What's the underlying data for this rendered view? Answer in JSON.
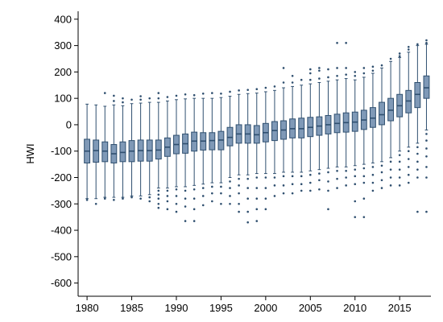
{
  "chart_data": {
    "type": "box",
    "title": "",
    "xlabel": "",
    "ylabel": "HWI",
    "ylim": [
      -650,
      430
    ],
    "xlim": [
      1979,
      2018.5
    ],
    "y_ticks": [
      400,
      300,
      200,
      100,
      0,
      -100,
      -200,
      -300,
      -400,
      -500,
      -600
    ],
    "x_ticks": [
      1980,
      1985,
      1990,
      1995,
      2000,
      2005,
      2010,
      2015
    ],
    "grid": false,
    "colors": {
      "box_fill": "#7f99b7",
      "box_stroke": "#2f4f6f",
      "outlier": "#2f4f6f",
      "axis": "#000000"
    },
    "boxes": [
      {
        "year": 1980,
        "lw": -280,
        "q1": -145,
        "med": -100,
        "q3": -55,
        "uw": 78,
        "outliers": [
          -285
        ]
      },
      {
        "year": 1981,
        "lw": -280,
        "q1": -142,
        "med": -98,
        "q3": -58,
        "uw": 75,
        "outliers": [
          -300
        ]
      },
      {
        "year": 1982,
        "lw": -275,
        "q1": -140,
        "med": -100,
        "q3": -65,
        "uw": 70,
        "outliers": [
          -280,
          120
        ]
      },
      {
        "year": 1983,
        "lw": -275,
        "q1": -145,
        "med": -110,
        "q3": -75,
        "uw": 75,
        "outliers": [
          -285,
          90,
          110
        ]
      },
      {
        "year": 1984,
        "lw": -275,
        "q1": -140,
        "med": -105,
        "q3": -65,
        "uw": 72,
        "outliers": [
          -280,
          85,
          100
        ]
      },
      {
        "year": 1985,
        "lw": -270,
        "q1": -140,
        "med": -100,
        "q3": -60,
        "uw": 80,
        "outliers": [
          -275,
          95
        ]
      },
      {
        "year": 1986,
        "lw": -270,
        "q1": -138,
        "med": -98,
        "q3": -58,
        "uw": 82,
        "outliers": [
          -280,
          95,
          108
        ]
      },
      {
        "year": 1987,
        "lw": -265,
        "q1": -138,
        "med": -98,
        "q3": -58,
        "uw": 85,
        "outliers": [
          -275,
          -290,
          100
        ]
      },
      {
        "year": 1988,
        "lw": -240,
        "q1": -130,
        "med": -96,
        "q3": -58,
        "uw": 85,
        "outliers": [
          -250,
          -265,
          -280,
          -300,
          -315,
          100,
          120
        ]
      },
      {
        "year": 1989,
        "lw": -240,
        "q1": -120,
        "med": -85,
        "q3": -50,
        "uw": 90,
        "outliers": [
          -250,
          -270,
          -290,
          -320,
          105
        ]
      },
      {
        "year": 1990,
        "lw": -235,
        "q1": -110,
        "med": -75,
        "q3": -40,
        "uw": 95,
        "outliers": [
          -245,
          -270,
          -300,
          -330,
          110
        ]
      },
      {
        "year": 1991,
        "lw": -235,
        "q1": -108,
        "med": -72,
        "q3": -35,
        "uw": 98,
        "outliers": [
          -250,
          -280,
          -310,
          -365,
          115
        ]
      },
      {
        "year": 1992,
        "lw": -230,
        "q1": -100,
        "med": -62,
        "q3": -28,
        "uw": 100,
        "outliers": [
          -245,
          -280,
          -320,
          -365,
          112
        ]
      },
      {
        "year": 1993,
        "lw": -225,
        "q1": -96,
        "med": -62,
        "q3": -30,
        "uw": 100,
        "outliers": [
          -240,
          -270,
          -305,
          118
        ]
      },
      {
        "year": 1994,
        "lw": -220,
        "q1": -95,
        "med": -60,
        "q3": -30,
        "uw": 100,
        "outliers": [
          -235,
          -260,
          -290,
          120
        ]
      },
      {
        "year": 1995,
        "lw": -220,
        "q1": -95,
        "med": -58,
        "q3": -25,
        "uw": 103,
        "outliers": [
          -235,
          -260,
          -300,
          118
        ]
      },
      {
        "year": 1996,
        "lw": -200,
        "q1": -80,
        "med": -48,
        "q3": -10,
        "uw": 108,
        "outliers": [
          -215,
          -240,
          -270,
          -300,
          125
        ]
      },
      {
        "year": 1997,
        "lw": -190,
        "q1": -70,
        "med": -35,
        "q3": 0,
        "uw": 115,
        "outliers": [
          -205,
          -230,
          -260,
          -300,
          -330,
          130
        ]
      },
      {
        "year": 1998,
        "lw": -190,
        "q1": -70,
        "med": -35,
        "q3": 0,
        "uw": 118,
        "outliers": [
          -205,
          -240,
          -280,
          -330,
          -370,
          132
        ]
      },
      {
        "year": 1999,
        "lw": -185,
        "q1": -70,
        "med": -38,
        "q3": -3,
        "uw": 120,
        "outliers": [
          -200,
          -240,
          -280,
          -320,
          -365,
          135
        ]
      },
      {
        "year": 2000,
        "lw": -185,
        "q1": -65,
        "med": -30,
        "q3": 5,
        "uw": 125,
        "outliers": [
          -200,
          -240,
          -280,
          -320,
          140
        ]
      },
      {
        "year": 2001,
        "lw": -185,
        "q1": -60,
        "med": -22,
        "q3": 12,
        "uw": 130,
        "outliers": [
          -200,
          -230,
          -270,
          145
        ]
      },
      {
        "year": 2002,
        "lw": -180,
        "q1": -55,
        "med": -20,
        "q3": 15,
        "uw": 140,
        "outliers": [
          -195,
          -230,
          -260,
          160,
          215
        ]
      },
      {
        "year": 2003,
        "lw": -180,
        "q1": -50,
        "med": -15,
        "q3": 22,
        "uw": 145,
        "outliers": [
          -195,
          -225,
          -260,
          160,
          185
        ]
      },
      {
        "year": 2004,
        "lw": -180,
        "q1": -50,
        "med": -15,
        "q3": 25,
        "uw": 150,
        "outliers": [
          -195,
          -225,
          -250,
          170
        ]
      },
      {
        "year": 2005,
        "lw": -175,
        "q1": -45,
        "med": -10,
        "q3": 28,
        "uw": 155,
        "outliers": [
          -190,
          -220,
          -250,
          170,
          195,
          210
        ]
      },
      {
        "year": 2006,
        "lw": -170,
        "q1": -40,
        "med": -5,
        "q3": 30,
        "uw": 160,
        "outliers": [
          -185,
          -210,
          -245,
          175,
          205,
          215
        ]
      },
      {
        "year": 2007,
        "lw": -165,
        "q1": -35,
        "med": 0,
        "q3": 35,
        "uw": 165,
        "outliers": [
          -180,
          -215,
          -250,
          -320,
          180,
          210
        ]
      },
      {
        "year": 2008,
        "lw": -160,
        "q1": -30,
        "med": 5,
        "q3": 40,
        "uw": 170,
        "outliers": [
          -175,
          -205,
          -240,
          185,
          215,
          310
        ]
      },
      {
        "year": 2009,
        "lw": -160,
        "q1": -28,
        "med": 8,
        "q3": 45,
        "uw": 175,
        "outliers": [
          -175,
          -200,
          -230,
          190,
          215,
          310
        ]
      },
      {
        "year": 2010,
        "lw": -155,
        "q1": -25,
        "med": 10,
        "q3": 48,
        "uw": 170,
        "outliers": [
          -170,
          -195,
          -225,
          -290,
          -350,
          185,
          200
        ]
      },
      {
        "year": 2011,
        "lw": -150,
        "q1": -18,
        "med": 18,
        "q3": 55,
        "uw": 180,
        "outliers": [
          -165,
          -195,
          -220,
          -280,
          -350,
          195,
          215
        ]
      },
      {
        "year": 2012,
        "lw": -145,
        "q1": -10,
        "med": 25,
        "q3": 65,
        "uw": 195,
        "outliers": [
          -160,
          -190,
          -220,
          -250,
          205,
          220
        ]
      },
      {
        "year": 2013,
        "lw": -140,
        "q1": 0,
        "med": 38,
        "q3": 85,
        "uw": 215,
        "outliers": [
          -155,
          -180,
          -210,
          -240,
          225
        ]
      },
      {
        "year": 2014,
        "lw": -125,
        "q1": 15,
        "med": 55,
        "q3": 100,
        "uw": 240,
        "outliers": [
          -140,
          -170,
          -200,
          -230,
          250
        ]
      },
      {
        "year": 2015,
        "lw": -100,
        "q1": 30,
        "med": 72,
        "q3": 115,
        "uw": 255,
        "outliers": [
          -115,
          -140,
          -170,
          -200,
          -230,
          260,
          270
        ]
      },
      {
        "year": 2016,
        "lw": -85,
        "q1": 45,
        "med": 90,
        "q3": 130,
        "uw": 275,
        "outliers": [
          -100,
          -130,
          -160,
          -190,
          -220,
          285,
          295
        ]
      },
      {
        "year": 2017,
        "lw": -70,
        "q1": 65,
        "med": 115,
        "q3": 160,
        "uw": 300,
        "outliers": [
          -85,
          -110,
          -140,
          -170,
          -200,
          -330,
          305
        ]
      },
      {
        "year": 2018,
        "lw": -20,
        "q1": 100,
        "med": 140,
        "q3": 185,
        "uw": 305,
        "outliers": [
          -35,
          -60,
          -90,
          -120,
          -160,
          -200,
          -330,
          310,
          320
        ]
      }
    ]
  }
}
